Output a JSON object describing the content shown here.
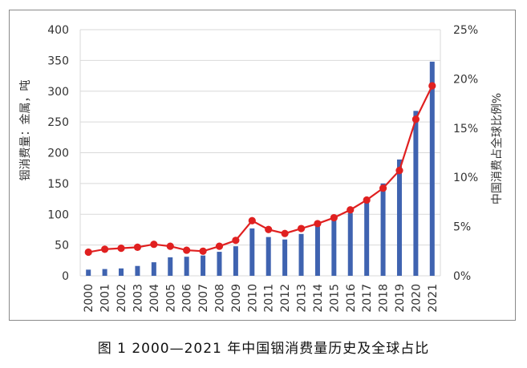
{
  "caption": "图 1  2000—2021 年中国铟消费量历史及全球占比",
  "colors": {
    "bar": "#3f63b0",
    "line": "#e02020",
    "grid": "#d9d9d9",
    "text": "#333333"
  },
  "chart_data": {
    "type": "bar",
    "categories": [
      "2000",
      "2001",
      "2002",
      "2003",
      "2004",
      "2005",
      "2006",
      "2007",
      "2008",
      "2009",
      "2010",
      "2011",
      "2012",
      "2013",
      "2014",
      "2015",
      "2016",
      "2017",
      "2018",
      "2019",
      "2020",
      "2021"
    ],
    "ylabel": "铟消费量：金属，吨",
    "y2label": "中国消费占全球比例%",
    "ylim": [
      0,
      400
    ],
    "y2lim": [
      0,
      25
    ],
    "yticks": [
      "0",
      "50",
      "100",
      "150",
      "200",
      "250",
      "300",
      "350",
      "400"
    ],
    "y2ticks": [
      "0%",
      "5%",
      "10%",
      "15%",
      "20%",
      "25%"
    ],
    "grid": true,
    "series": [
      {
        "type": "bar",
        "axis": "left",
        "values": [
          10,
          11,
          12,
          16,
          22,
          30,
          31,
          33,
          39,
          48,
          77,
          63,
          59,
          68,
          80,
          91,
          102,
          120,
          150,
          189,
          268,
          348
        ]
      },
      {
        "type": "line",
        "axis": "right",
        "values": [
          2.4,
          2.7,
          2.8,
          2.9,
          3.2,
          3.0,
          2.6,
          2.5,
          3.0,
          3.6,
          5.6,
          4.7,
          4.3,
          4.8,
          5.3,
          5.9,
          6.7,
          7.7,
          8.9,
          10.7,
          15.9,
          19.3
        ]
      }
    ]
  }
}
